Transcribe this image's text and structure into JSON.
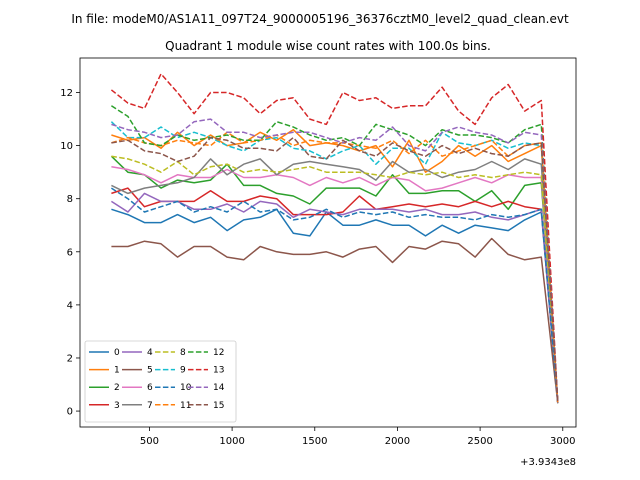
{
  "chart_data": {
    "type": "line",
    "suptitle": "In file: modeM0/AS1A11_097T24_9000005196_36376cztM0_level2_quad_clean.evt",
    "title": "Quadrant 1 module wise count rates with 100.0s bins.",
    "xlabel": "",
    "ylabel": "",
    "x_offset_label": "+3.9343e8",
    "xlim": [
      80,
      3080
    ],
    "ylim": [
      -0.6,
      13.3
    ],
    "xticks": [
      500,
      1000,
      1500,
      2000,
      2500,
      3000
    ],
    "yticks": [
      0,
      2,
      4,
      6,
      8,
      10,
      12
    ],
    "x": [
      270,
      370,
      470,
      570,
      670,
      770,
      870,
      970,
      1070,
      1170,
      1270,
      1370,
      1470,
      1570,
      1670,
      1770,
      1870,
      1970,
      2070,
      2170,
      2270,
      2370,
      2470,
      2570,
      2670,
      2770,
      2870,
      2970
    ],
    "legend": {
      "columns": 4,
      "location": "lower-left"
    },
    "series": [
      {
        "name": "0",
        "color": "#1f77b4",
        "dash": "solid",
        "values": [
          7.6,
          7.4,
          7.1,
          7.1,
          7.4,
          7.1,
          7.3,
          6.8,
          7.2,
          7.3,
          7.6,
          6.7,
          6.6,
          7.5,
          7.0,
          7.0,
          7.2,
          7.0,
          7.0,
          6.6,
          7.0,
          6.7,
          7.0,
          6.9,
          6.8,
          7.2,
          7.5,
          0.3
        ]
      },
      {
        "name": "1",
        "color": "#ff7f0e",
        "dash": "solid",
        "values": [
          10.4,
          10.2,
          10.3,
          9.9,
          10.5,
          10.0,
          10.4,
          10.0,
          10.1,
          10.5,
          10.2,
          10.6,
          10.0,
          10.1,
          10.0,
          9.8,
          10.0,
          9.2,
          10.2,
          9.0,
          9.4,
          10.0,
          9.6,
          10.0,
          9.4,
          9.7,
          10.0,
          0.3
        ]
      },
      {
        "name": "2",
        "color": "#2ca02c",
        "dash": "solid",
        "values": [
          9.6,
          9.0,
          8.9,
          8.4,
          8.7,
          8.6,
          8.7,
          9.3,
          8.5,
          8.5,
          8.2,
          8.1,
          7.8,
          8.4,
          8.4,
          8.4,
          8.1,
          8.9,
          8.2,
          8.2,
          8.3,
          8.3,
          7.9,
          8.3,
          7.6,
          8.5,
          8.6,
          0.3
        ]
      },
      {
        "name": "3",
        "color": "#d62728",
        "dash": "solid",
        "values": [
          8.2,
          8.4,
          7.7,
          7.9,
          7.9,
          7.9,
          8.3,
          7.9,
          7.9,
          8.1,
          8.0,
          7.4,
          7.4,
          7.4,
          7.5,
          8.1,
          7.6,
          7.7,
          7.8,
          7.7,
          7.8,
          7.7,
          7.9,
          7.7,
          7.9,
          7.7,
          7.6,
          0.3
        ]
      },
      {
        "name": "4",
        "color": "#9467bd",
        "dash": "solid",
        "values": [
          7.9,
          7.5,
          8.2,
          7.9,
          7.9,
          7.6,
          7.6,
          7.8,
          7.5,
          7.9,
          7.8,
          7.3,
          7.6,
          7.5,
          7.4,
          7.6,
          7.6,
          7.6,
          7.5,
          7.6,
          7.4,
          7.4,
          7.5,
          7.3,
          7.2,
          7.4,
          7.6,
          0.3
        ]
      },
      {
        "name": "5",
        "color": "#8c564b",
        "dash": "solid",
        "values": [
          6.2,
          6.2,
          6.4,
          6.3,
          5.8,
          6.2,
          6.2,
          5.8,
          5.7,
          6.2,
          6.0,
          5.9,
          5.9,
          6.0,
          5.8,
          6.1,
          6.2,
          5.6,
          6.2,
          6.1,
          6.4,
          6.3,
          5.8,
          6.5,
          5.9,
          5.7,
          5.8,
          0.3
        ]
      },
      {
        "name": "6",
        "color": "#e377c2",
        "dash": "solid",
        "values": [
          9.2,
          9.1,
          8.9,
          8.6,
          8.9,
          8.8,
          8.8,
          9.1,
          8.8,
          8.8,
          8.9,
          8.8,
          8.5,
          8.8,
          8.6,
          8.8,
          8.5,
          8.8,
          8.7,
          8.3,
          8.4,
          8.6,
          8.8,
          8.6,
          8.9,
          8.8,
          8.8,
          0.3
        ]
      },
      {
        "name": "7",
        "color": "#7f7f7f",
        "dash": "solid",
        "values": [
          8.5,
          8.2,
          8.4,
          8.5,
          8.6,
          8.8,
          9.5,
          8.9,
          9.3,
          9.5,
          8.9,
          9.3,
          9.4,
          9.3,
          9.2,
          9.1,
          8.7,
          9.4,
          9.0,
          9.1,
          8.8,
          9.0,
          9.1,
          9.4,
          9.1,
          9.5,
          9.3,
          0.3
        ]
      },
      {
        "name": "8",
        "color": "#bcbd22",
        "dash": "dash",
        "values": [
          9.6,
          9.5,
          9.3,
          9.0,
          9.4,
          8.9,
          9.2,
          9.3,
          9.0,
          9.1,
          9.0,
          9.1,
          9.2,
          9.0,
          9.0,
          9.0,
          8.9,
          8.8,
          9.0,
          8.9,
          9.0,
          8.8,
          8.9,
          8.8,
          8.9,
          9.0,
          8.9,
          0.3
        ]
      },
      {
        "name": "9",
        "color": "#17becf",
        "dash": "dash",
        "values": [
          10.9,
          10.3,
          10.3,
          10.7,
          10.3,
          10.5,
          10.3,
          10.0,
          9.8,
          10.2,
          10.3,
          9.9,
          9.8,
          9.5,
          9.8,
          10.0,
          9.3,
          9.9,
          9.9,
          9.3,
          10.5,
          10.1,
          10.0,
          10.2,
          9.9,
          10.1,
          10.0,
          0.3
        ]
      },
      {
        "name": "10",
        "color": "#1f77b4",
        "dash": "dash",
        "values": [
          8.4,
          8.0,
          7.5,
          7.7,
          7.9,
          7.5,
          7.7,
          7.5,
          7.9,
          7.5,
          7.6,
          7.2,
          7.3,
          7.6,
          7.3,
          7.5,
          7.4,
          7.5,
          7.3,
          7.4,
          7.3,
          7.3,
          7.2,
          7.4,
          7.3,
          7.4,
          7.6,
          0.3
        ]
      },
      {
        "name": "11",
        "color": "#ff7f0e",
        "dash": "dash",
        "values": [
          10.1,
          10.3,
          10.1,
          10.0,
          10.2,
          10.1,
          10.0,
          10.5,
          10.1,
          10.2,
          10.4,
          10.0,
          10.2,
          10.1,
          10.1,
          10.0,
          9.9,
          10.2,
          9.7,
          10.2,
          9.6,
          9.8,
          10.0,
          10.2,
          9.6,
          10.0,
          10.1,
          0.3
        ]
      },
      {
        "name": "12",
        "color": "#2ca02c",
        "dash": "dash",
        "values": [
          11.5,
          11.1,
          10.1,
          10.0,
          10.4,
          10.2,
          10.3,
          10.4,
          10.2,
          10.2,
          10.9,
          10.7,
          10.4,
          10.2,
          10.3,
          10.0,
          10.8,
          10.6,
          10.4,
          10.0,
          10.6,
          10.4,
          10.4,
          10.3,
          10.1,
          10.6,
          10.8,
          0.3
        ]
      },
      {
        "name": "13",
        "color": "#d62728",
        "dash": "dash",
        "values": [
          12.1,
          11.6,
          11.4,
          12.7,
          12.0,
          11.2,
          12.0,
          12.0,
          11.8,
          11.2,
          11.7,
          11.8,
          11.0,
          10.8,
          12.0,
          11.7,
          11.8,
          11.4,
          11.5,
          11.5,
          12.2,
          11.3,
          10.8,
          11.8,
          12.3,
          11.3,
          11.7,
          0.3
        ]
      },
      {
        "name": "14",
        "color": "#9467bd",
        "dash": "dash",
        "values": [
          10.8,
          10.6,
          10.5,
          10.3,
          10.4,
          10.9,
          11.0,
          10.5,
          10.5,
          10.3,
          10.4,
          10.5,
          10.5,
          10.3,
          10.1,
          10.3,
          10.2,
          10.7,
          10.0,
          9.8,
          10.5,
          10.7,
          10.5,
          10.4,
          10.1,
          10.5,
          10.4,
          0.3
        ]
      },
      {
        "name": "15",
        "color": "#8c564b",
        "dash": "dash",
        "values": [
          10.1,
          10.2,
          9.8,
          9.7,
          9.4,
          9.6,
          10.3,
          10.2,
          9.9,
          9.9,
          9.8,
          10.3,
          9.6,
          9.5,
          10.2,
          9.8,
          9.6,
          10.1,
          9.8,
          9.6,
          10.0,
          9.7,
          9.9,
          9.7,
          9.6,
          10.0,
          10.1,
          0.3
        ]
      }
    ]
  }
}
